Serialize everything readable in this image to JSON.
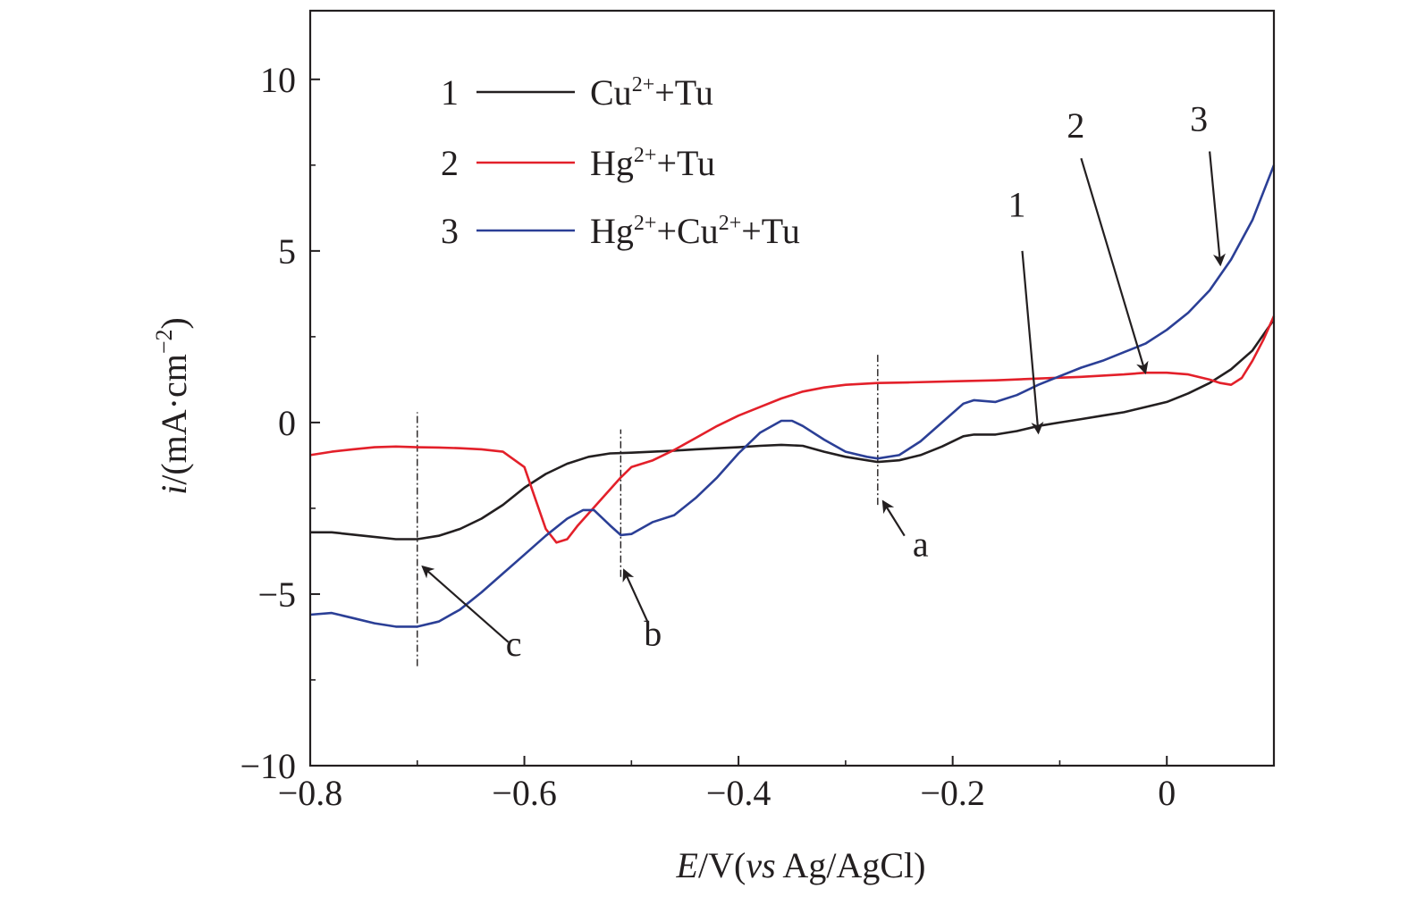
{
  "chart_data": {
    "type": "line",
    "title": "",
    "xlabel": "E/V(vs Ag/AgCl)",
    "ylabel": "i/(mA·cm⁻²)",
    "xlabel_parts": {
      "var": "E",
      "unit_pre": "/V(",
      "vs": "vs",
      "unit_post": " Ag/AgCl)"
    },
    "ylabel_parts": {
      "var": "i",
      "unit": "/(mA·cm",
      "exp": "−2",
      "close": ")"
    },
    "xlim": [
      -0.8,
      0.1
    ],
    "ylim": [
      -10,
      12
    ],
    "x_ticks": [
      -0.8,
      -0.6,
      -0.4,
      -0.2,
      0
    ],
    "x_tick_labels": [
      "−0.8",
      "−0.6",
      "−0.4",
      "−0.2",
      "0"
    ],
    "y_ticks": [
      -10,
      -5,
      0,
      5,
      10
    ],
    "y_tick_labels": [
      "−10",
      "−5",
      "0",
      "5",
      "10"
    ],
    "grid": false,
    "legend_position": "top-left",
    "series": [
      {
        "id": "1",
        "number": "1",
        "name": "Cu²⁺+Tu",
        "legend_parts": [
          [
            "Cu",
            false
          ],
          [
            "2+",
            true
          ],
          [
            "+Tu",
            false
          ]
        ],
        "color": "#231f20",
        "points": [
          [
            -0.8,
            -3.2
          ],
          [
            -0.78,
            -3.2
          ],
          [
            -0.75,
            -3.3
          ],
          [
            -0.72,
            -3.4
          ],
          [
            -0.7,
            -3.4
          ],
          [
            -0.68,
            -3.3
          ],
          [
            -0.66,
            -3.1
          ],
          [
            -0.64,
            -2.8
          ],
          [
            -0.62,
            -2.4
          ],
          [
            -0.6,
            -1.9
          ],
          [
            -0.58,
            -1.5
          ],
          [
            -0.56,
            -1.2
          ],
          [
            -0.54,
            -1.0
          ],
          [
            -0.52,
            -0.9
          ],
          [
            -0.5,
            -0.88
          ],
          [
            -0.48,
            -0.85
          ],
          [
            -0.46,
            -0.82
          ],
          [
            -0.44,
            -0.78
          ],
          [
            -0.42,
            -0.75
          ],
          [
            -0.4,
            -0.72
          ],
          [
            -0.38,
            -0.68
          ],
          [
            -0.36,
            -0.65
          ],
          [
            -0.34,
            -0.68
          ],
          [
            -0.32,
            -0.85
          ],
          [
            -0.3,
            -1.0
          ],
          [
            -0.28,
            -1.1
          ],
          [
            -0.27,
            -1.15
          ],
          [
            -0.25,
            -1.1
          ],
          [
            -0.23,
            -0.95
          ],
          [
            -0.21,
            -0.7
          ],
          [
            -0.19,
            -0.4
          ],
          [
            -0.18,
            -0.35
          ],
          [
            -0.16,
            -0.35
          ],
          [
            -0.14,
            -0.25
          ],
          [
            -0.12,
            -0.1
          ],
          [
            -0.1,
            0.0
          ],
          [
            -0.08,
            0.1
          ],
          [
            -0.06,
            0.2
          ],
          [
            -0.04,
            0.3
          ],
          [
            -0.02,
            0.45
          ],
          [
            0.0,
            0.6
          ],
          [
            0.02,
            0.85
          ],
          [
            0.04,
            1.15
          ],
          [
            0.06,
            1.55
          ],
          [
            0.08,
            2.1
          ],
          [
            0.1,
            3.0
          ]
        ]
      },
      {
        "id": "2",
        "number": "2",
        "name": "Hg²⁺+Tu",
        "legend_parts": [
          [
            "Hg",
            false
          ],
          [
            "2+",
            true
          ],
          [
            "+Tu",
            false
          ]
        ],
        "color": "#e3202a",
        "points": [
          [
            -0.8,
            -0.95
          ],
          [
            -0.78,
            -0.85
          ],
          [
            -0.76,
            -0.78
          ],
          [
            -0.74,
            -0.72
          ],
          [
            -0.72,
            -0.7
          ],
          [
            -0.7,
            -0.72
          ],
          [
            -0.68,
            -0.73
          ],
          [
            -0.66,
            -0.75
          ],
          [
            -0.64,
            -0.78
          ],
          [
            -0.62,
            -0.85
          ],
          [
            -0.6,
            -1.3
          ],
          [
            -0.59,
            -2.2
          ],
          [
            -0.58,
            -3.1
          ],
          [
            -0.57,
            -3.5
          ],
          [
            -0.56,
            -3.4
          ],
          [
            -0.55,
            -3.0
          ],
          [
            -0.53,
            -2.3
          ],
          [
            -0.51,
            -1.6
          ],
          [
            -0.5,
            -1.3
          ],
          [
            -0.48,
            -1.1
          ],
          [
            -0.46,
            -0.8
          ],
          [
            -0.44,
            -0.45
          ],
          [
            -0.42,
            -0.1
          ],
          [
            -0.4,
            0.2
          ],
          [
            -0.38,
            0.45
          ],
          [
            -0.36,
            0.7
          ],
          [
            -0.34,
            0.9
          ],
          [
            -0.32,
            1.02
          ],
          [
            -0.3,
            1.1
          ],
          [
            -0.27,
            1.15
          ],
          [
            -0.24,
            1.17
          ],
          [
            -0.2,
            1.2
          ],
          [
            -0.16,
            1.23
          ],
          [
            -0.12,
            1.28
          ],
          [
            -0.08,
            1.33
          ],
          [
            -0.04,
            1.4
          ],
          [
            -0.02,
            1.45
          ],
          [
            0.0,
            1.45
          ],
          [
            0.02,
            1.4
          ],
          [
            0.04,
            1.25
          ],
          [
            0.05,
            1.15
          ],
          [
            0.06,
            1.1
          ],
          [
            0.07,
            1.3
          ],
          [
            0.08,
            1.8
          ],
          [
            0.09,
            2.4
          ],
          [
            0.1,
            3.1
          ]
        ]
      },
      {
        "id": "3",
        "number": "3",
        "name": "Hg²⁺+Cu²⁺+Tu",
        "legend_parts": [
          [
            "Hg",
            false
          ],
          [
            "2+",
            true
          ],
          [
            "+Cu",
            false
          ],
          [
            "2+",
            true
          ],
          [
            "+Tu",
            false
          ]
        ],
        "color": "#2b3f96",
        "points": [
          [
            -0.8,
            -5.6
          ],
          [
            -0.78,
            -5.55
          ],
          [
            -0.76,
            -5.7
          ],
          [
            -0.74,
            -5.85
          ],
          [
            -0.72,
            -5.95
          ],
          [
            -0.7,
            -5.95
          ],
          [
            -0.68,
            -5.8
          ],
          [
            -0.66,
            -5.45
          ],
          [
            -0.64,
            -4.95
          ],
          [
            -0.62,
            -4.4
          ],
          [
            -0.6,
            -3.85
          ],
          [
            -0.58,
            -3.3
          ],
          [
            -0.56,
            -2.8
          ],
          [
            -0.545,
            -2.55
          ],
          [
            -0.535,
            -2.55
          ],
          [
            -0.52,
            -3.0
          ],
          [
            -0.51,
            -3.28
          ],
          [
            -0.5,
            -3.25
          ],
          [
            -0.48,
            -2.9
          ],
          [
            -0.46,
            -2.7
          ],
          [
            -0.44,
            -2.2
          ],
          [
            -0.42,
            -1.6
          ],
          [
            -0.4,
            -0.9
          ],
          [
            -0.38,
            -0.3
          ],
          [
            -0.36,
            0.05
          ],
          [
            -0.35,
            0.05
          ],
          [
            -0.34,
            -0.1
          ],
          [
            -0.32,
            -0.5
          ],
          [
            -0.3,
            -0.85
          ],
          [
            -0.28,
            -1.0
          ],
          [
            -0.27,
            -1.05
          ],
          [
            -0.25,
            -0.95
          ],
          [
            -0.23,
            -0.55
          ],
          [
            -0.21,
            0.0
          ],
          [
            -0.19,
            0.55
          ],
          [
            -0.18,
            0.65
          ],
          [
            -0.16,
            0.6
          ],
          [
            -0.14,
            0.8
          ],
          [
            -0.12,
            1.1
          ],
          [
            -0.1,
            1.35
          ],
          [
            -0.08,
            1.6
          ],
          [
            -0.06,
            1.8
          ],
          [
            -0.04,
            2.05
          ],
          [
            -0.02,
            2.3
          ],
          [
            0.0,
            2.7
          ],
          [
            0.02,
            3.2
          ],
          [
            0.04,
            3.85
          ],
          [
            0.06,
            4.75
          ],
          [
            0.08,
            5.9
          ],
          [
            0.1,
            7.5
          ]
        ]
      }
    ],
    "vertical_markers": [
      {
        "x": -0.7,
        "y_range": [
          -7.1,
          0.3
        ]
      },
      {
        "x": -0.51,
        "y_range": [
          -4.5,
          -0.2
        ]
      },
      {
        "x": -0.27,
        "y_range": [
          -2.4,
          2.0
        ]
      }
    ],
    "annotations": [
      {
        "label": "a",
        "text_at": [
          -0.23,
          -3.9
        ],
        "arrow_from": [
          -0.245,
          -3.3
        ],
        "arrow_to": [
          -0.265,
          -2.3
        ]
      },
      {
        "label": "b",
        "text_at": [
          -0.48,
          -6.5
        ],
        "arrow_from": [
          -0.485,
          -5.8
        ],
        "arrow_to": [
          -0.507,
          -4.3
        ]
      },
      {
        "label": "c",
        "text_at": [
          -0.61,
          -6.8
        ],
        "arrow_from": [
          -0.615,
          -6.4
        ],
        "arrow_to": [
          -0.695,
          -4.2
        ]
      },
      {
        "label": "1",
        "text_at": [
          -0.14,
          6.0
        ],
        "arrow_from": [
          -0.135,
          5.0
        ],
        "arrow_to": [
          -0.12,
          -0.3
        ]
      },
      {
        "label": "2",
        "text_at": [
          -0.085,
          8.3
        ],
        "arrow_from": [
          -0.08,
          7.7
        ],
        "arrow_to": [
          -0.02,
          1.45
        ]
      },
      {
        "label": "3",
        "text_at": [
          0.03,
          8.5
        ],
        "arrow_from": [
          0.04,
          7.9
        ],
        "arrow_to": [
          0.05,
          4.6
        ]
      }
    ]
  }
}
